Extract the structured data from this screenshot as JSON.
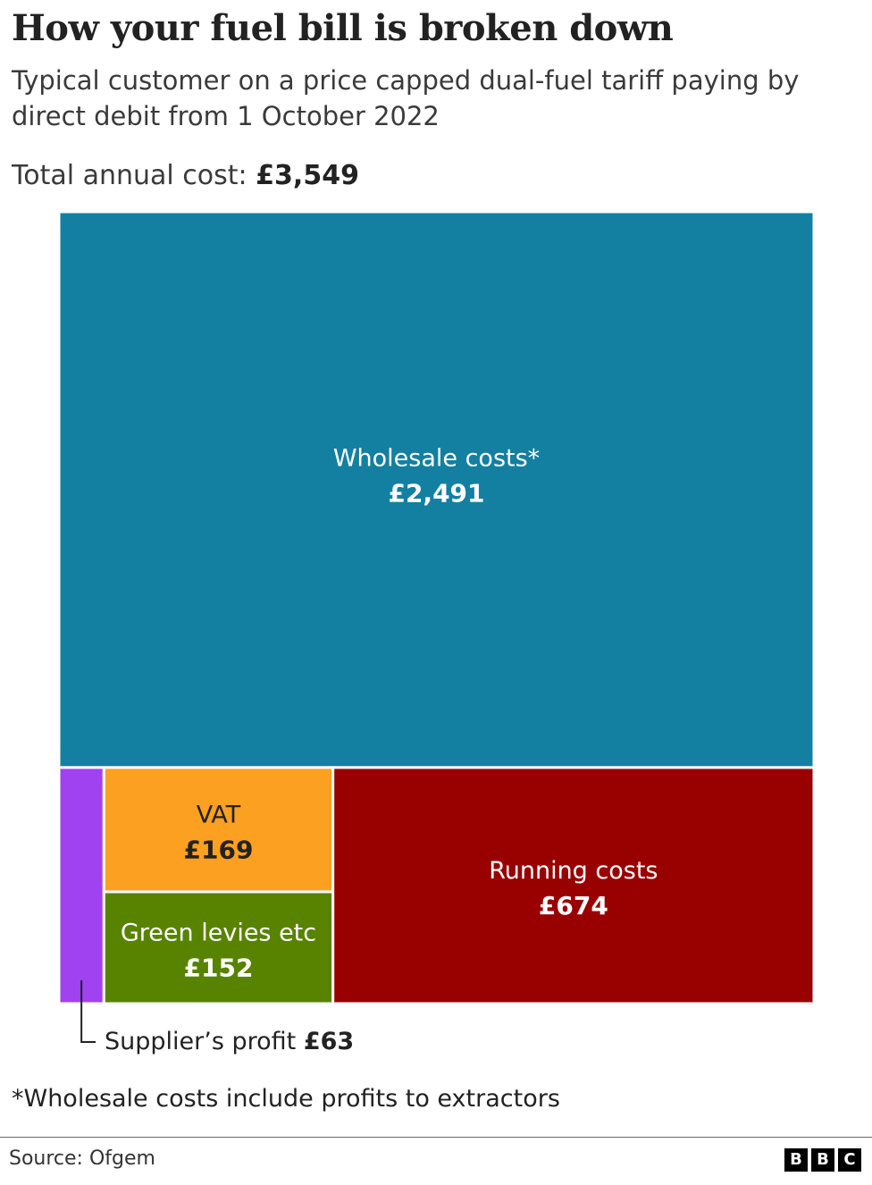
{
  "title": "How your fuel bill is broken down",
  "subtitle": "Typical customer on a price capped dual-fuel tariff paying by direct debit from 1 October 2022",
  "total": {
    "label": "Total annual cost:",
    "value": "£3,549"
  },
  "chart_data": {
    "type": "treemap",
    "total": 3549,
    "segments": [
      {
        "key": "wholesale",
        "label": "Wholesale costs*",
        "value": 2491,
        "value_label": "£2,491",
        "color": "#1380a1"
      },
      {
        "key": "profit",
        "label": "Supplier’s profit",
        "value": 63,
        "value_label": "£63",
        "color": "#a042f0"
      },
      {
        "key": "vat",
        "label": "VAT",
        "value": 169,
        "value_label": "£169",
        "color": "#fca021"
      },
      {
        "key": "green",
        "label": "Green levies etc",
        "value": 152,
        "value_label": "£152",
        "color": "#588300"
      },
      {
        "key": "running",
        "label": "Running costs",
        "value": 674,
        "value_label": "£674",
        "color": "#990000"
      }
    ]
  },
  "footnote": "*Wholesale costs include profits to extractors",
  "source": "Source: Ofgem",
  "logo_letters": [
    "B",
    "B",
    "C"
  ]
}
